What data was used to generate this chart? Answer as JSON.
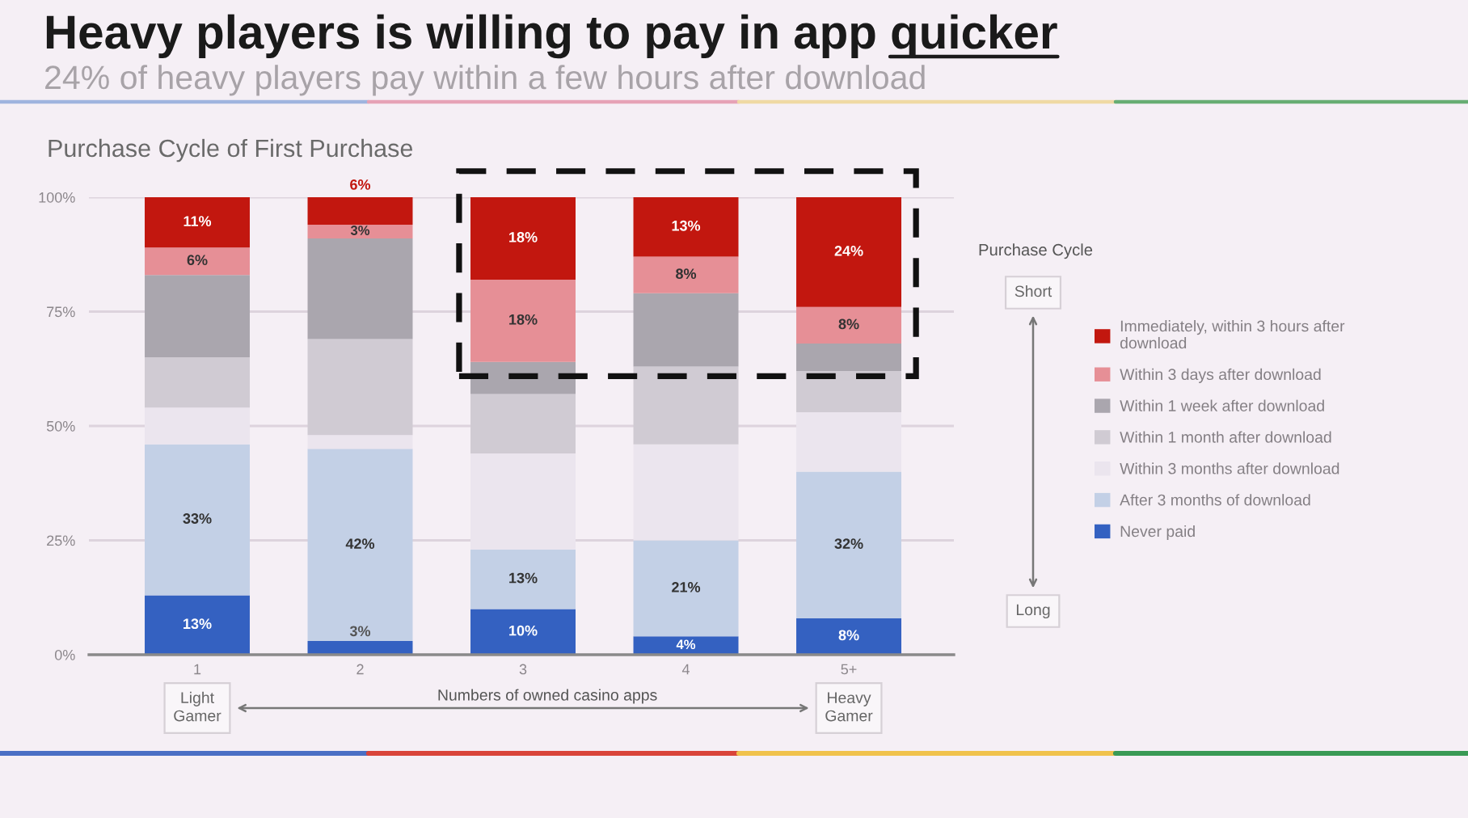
{
  "chart_data": {
    "type": "bar",
    "title": "Heavy players is willing to pay in app quicker",
    "subtitle": "24% of heavy players pay within a few hours after download",
    "xlabel": "Numbers of owned casino apps",
    "legend_title": "Purchase Cycle",
    "annotations": [
      "Purchase Cycle of First Purchase",
      "Short",
      "Long",
      "Light Gamer",
      "Heavy Gamer"
    ],
    "categories": [
      "1",
      "2",
      "3",
      "4",
      "5+"
    ],
    "stacked": true,
    "series": [
      {
        "name": "Never paid",
        "color": "#3461c1",
        "values": [
          13,
          3,
          10,
          4,
          8
        ],
        "value_labels": [
          "13%",
          "3%",
          "10%",
          "4%",
          "8%"
        ]
      },
      {
        "name": "After 3 months of download",
        "color": "#c3d0e6",
        "values": [
          33,
          42,
          13,
          21,
          32
        ],
        "value_labels": [
          "33%",
          "42%",
          "13%",
          "21%",
          "32%"
        ]
      },
      {
        "name": "Within 3 months after download",
        "color": "#ebe5ee",
        "values": [
          8,
          3,
          21,
          21,
          13
        ]
      },
      {
        "name": "Within 1 month after download",
        "color": "#d0cbd3",
        "values": [
          11,
          21,
          13,
          17,
          9
        ]
      },
      {
        "name": "Within 1 week after download",
        "color": "#aaa6ae",
        "values": [
          18,
          22,
          7,
          16,
          6
        ]
      },
      {
        "name": "Within 3 days after download",
        "color": "#e68f96",
        "values": [
          6,
          3,
          18,
          8,
          8
        ],
        "value_labels": [
          "6%",
          "3%",
          "18%",
          "8%",
          "8%"
        ]
      },
      {
        "name": "Immediately, within 3 hours after download",
        "color": "#c2170f",
        "values": [
          11,
          6,
          18,
          13,
          24
        ],
        "value_labels": [
          "11%",
          "6%",
          "18%",
          "13%",
          "24%"
        ]
      }
    ],
    "ylim": [
      0,
      100
    ],
    "yticks": [
      {
        "value": 0,
        "label": "0%"
      },
      {
        "value": 25,
        "label": "25%"
      },
      {
        "value": 50,
        "label": "50%"
      },
      {
        "value": 75,
        "label": "75%"
      },
      {
        "value": 100,
        "label": "100%"
      }
    ],
    "grid": "y",
    "legend": "right"
  }
}
